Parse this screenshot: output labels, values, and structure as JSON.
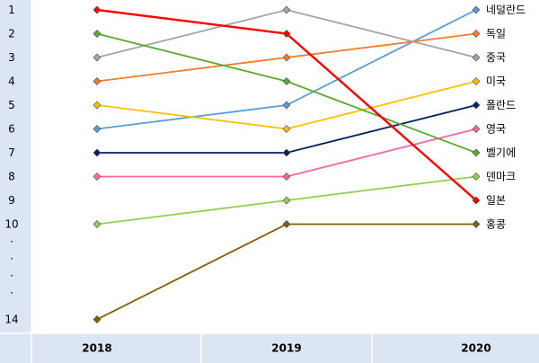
{
  "chart_data": {
    "type": "line",
    "subtype": "bump-chart",
    "x": [
      "2018",
      "2019",
      "2020"
    ],
    "y_axis": {
      "inverted": true,
      "tick_labels": [
        "1",
        "2",
        "3",
        "4",
        "5",
        "6",
        "7",
        "8",
        "9",
        "10",
        "14"
      ],
      "break_marks": [
        ".",
        ".",
        ".",
        "."
      ],
      "range": [
        1,
        14
      ]
    },
    "grid": false,
    "legend": "direct labels at right end of lines",
    "series": [
      {
        "name": "네덜란드",
        "values": [
          6,
          5,
          1
        ],
        "color": "#5b9bd5"
      },
      {
        "name": "독일",
        "values": [
          4,
          3,
          2
        ],
        "color": "#ed7d31"
      },
      {
        "name": "중국",
        "values": [
          3,
          1,
          3
        ],
        "color": "#a5a5a5"
      },
      {
        "name": "미국",
        "values": [
          5,
          6,
          4
        ],
        "color": "#ffc000"
      },
      {
        "name": "폴란드",
        "values": [
          7,
          7,
          5
        ],
        "color": "#002060"
      },
      {
        "name": "영국",
        "values": [
          8,
          8,
          6
        ],
        "color": "#ff6699"
      },
      {
        "name": "벨기에",
        "values": [
          2,
          4,
          7
        ],
        "color": "#5ea832"
      },
      {
        "name": "덴마크",
        "values": [
          10,
          9,
          8
        ],
        "color": "#92d050"
      },
      {
        "name": "일본",
        "values": [
          1,
          2,
          9
        ],
        "color": "#ff0000"
      },
      {
        "name": "홍콩",
        "values": [
          14,
          10,
          10
        ],
        "color": "#7f6000"
      }
    ]
  }
}
